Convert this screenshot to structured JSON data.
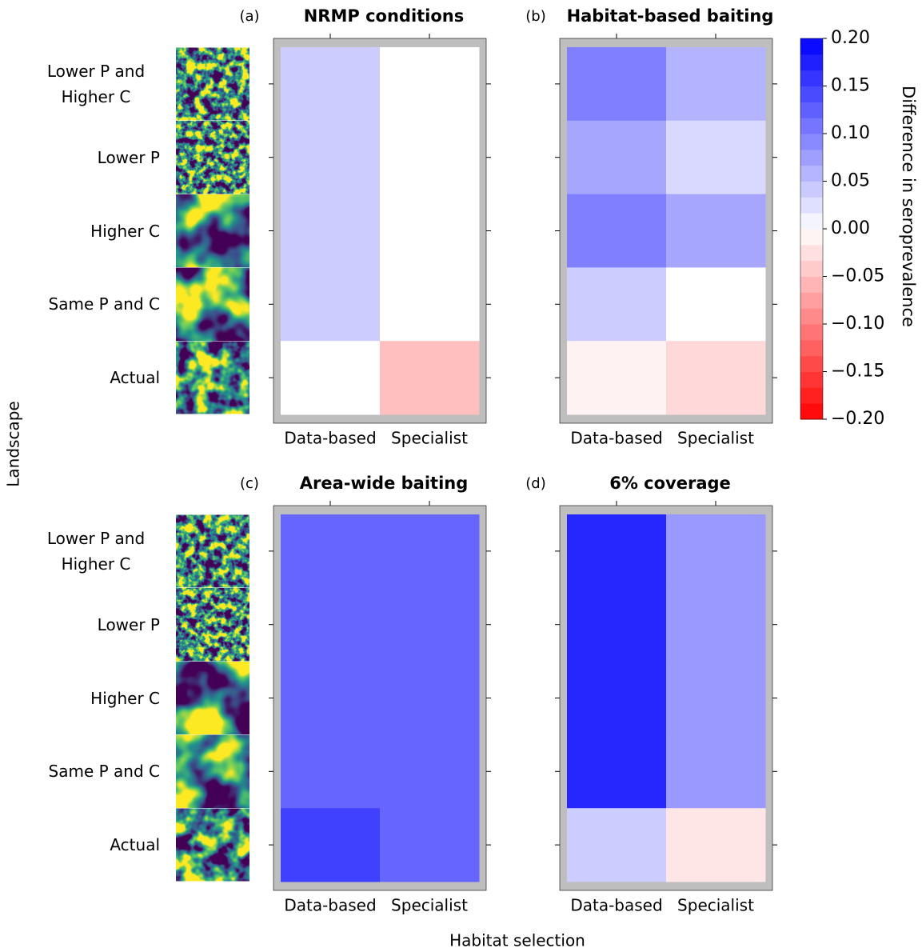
{
  "x_label": "Habitat selection",
  "y_label": "Landscape",
  "colorbar": {
    "label": "Difference in seroprevalence",
    "lim": [
      -0.2,
      0.2
    ],
    "levels": 24,
    "colors": [
      "#ff0000",
      "#ffffff",
      "#0000ff"
    ],
    "ticks": [
      {
        "value": 0.2,
        "label": "0.20"
      },
      {
        "value": 0.15,
        "label": "0.15"
      },
      {
        "value": 0.1,
        "label": "0.10"
      },
      {
        "value": 0.05,
        "label": "0.05"
      },
      {
        "value": 0,
        "label": "0.00"
      },
      {
        "value": -0.05,
        "label": "−0.05"
      },
      {
        "value": -0.1,
        "label": "−0.10"
      },
      {
        "value": -0.15,
        "label": "−0.15"
      },
      {
        "value": -0.2,
        "label": "−0.20"
      }
    ]
  },
  "chart_data": [
    {
      "type": "heatmap",
      "panel": "(a)",
      "title": "NRMP conditions",
      "x_categories": [
        "Data-based",
        "Specialist"
      ],
      "y_categories": [
        "Lower P and Higher C",
        "Lower P",
        "Higher C",
        "Same P and C",
        "Actual"
      ],
      "values": [
        [
          0.04,
          0
        ],
        [
          0.04,
          0
        ],
        [
          0.04,
          0
        ],
        [
          0.04,
          0
        ],
        [
          0,
          -0.05
        ]
      ]
    },
    {
      "type": "heatmap",
      "panel": "(b)",
      "title": "Habitat-based baiting",
      "x_categories": [
        "Data-based",
        "Specialist"
      ],
      "values": [
        [
          0.1,
          0.06
        ],
        [
          0.07,
          0.03
        ],
        [
          0.1,
          0.07
        ],
        [
          0.04,
          0
        ],
        [
          -0.01,
          -0.03
        ]
      ]
    },
    {
      "type": "heatmap",
      "panel": "(c)",
      "title": "Area-wide baiting",
      "x_categories": [
        "Data-based",
        "Specialist"
      ],
      "y_categories": [
        "Lower P and Higher C",
        "Lower P",
        "Higher C",
        "Same P and C",
        "Actual"
      ],
      "values": [
        [
          0.12,
          0.12
        ],
        [
          0.12,
          0.12
        ],
        [
          0.12,
          0.12
        ],
        [
          0.12,
          0.12
        ],
        [
          0.15,
          0.12
        ]
      ]
    },
    {
      "type": "heatmap",
      "panel": "(d)",
      "title": "6% coverage",
      "x_categories": [
        "Data-based",
        "Specialist"
      ],
      "values": [
        [
          0.17,
          0.08
        ],
        [
          0.17,
          0.08
        ],
        [
          0.17,
          0.08
        ],
        [
          0.17,
          0.08
        ],
        [
          0.04,
          -0.02
        ]
      ]
    }
  ]
}
